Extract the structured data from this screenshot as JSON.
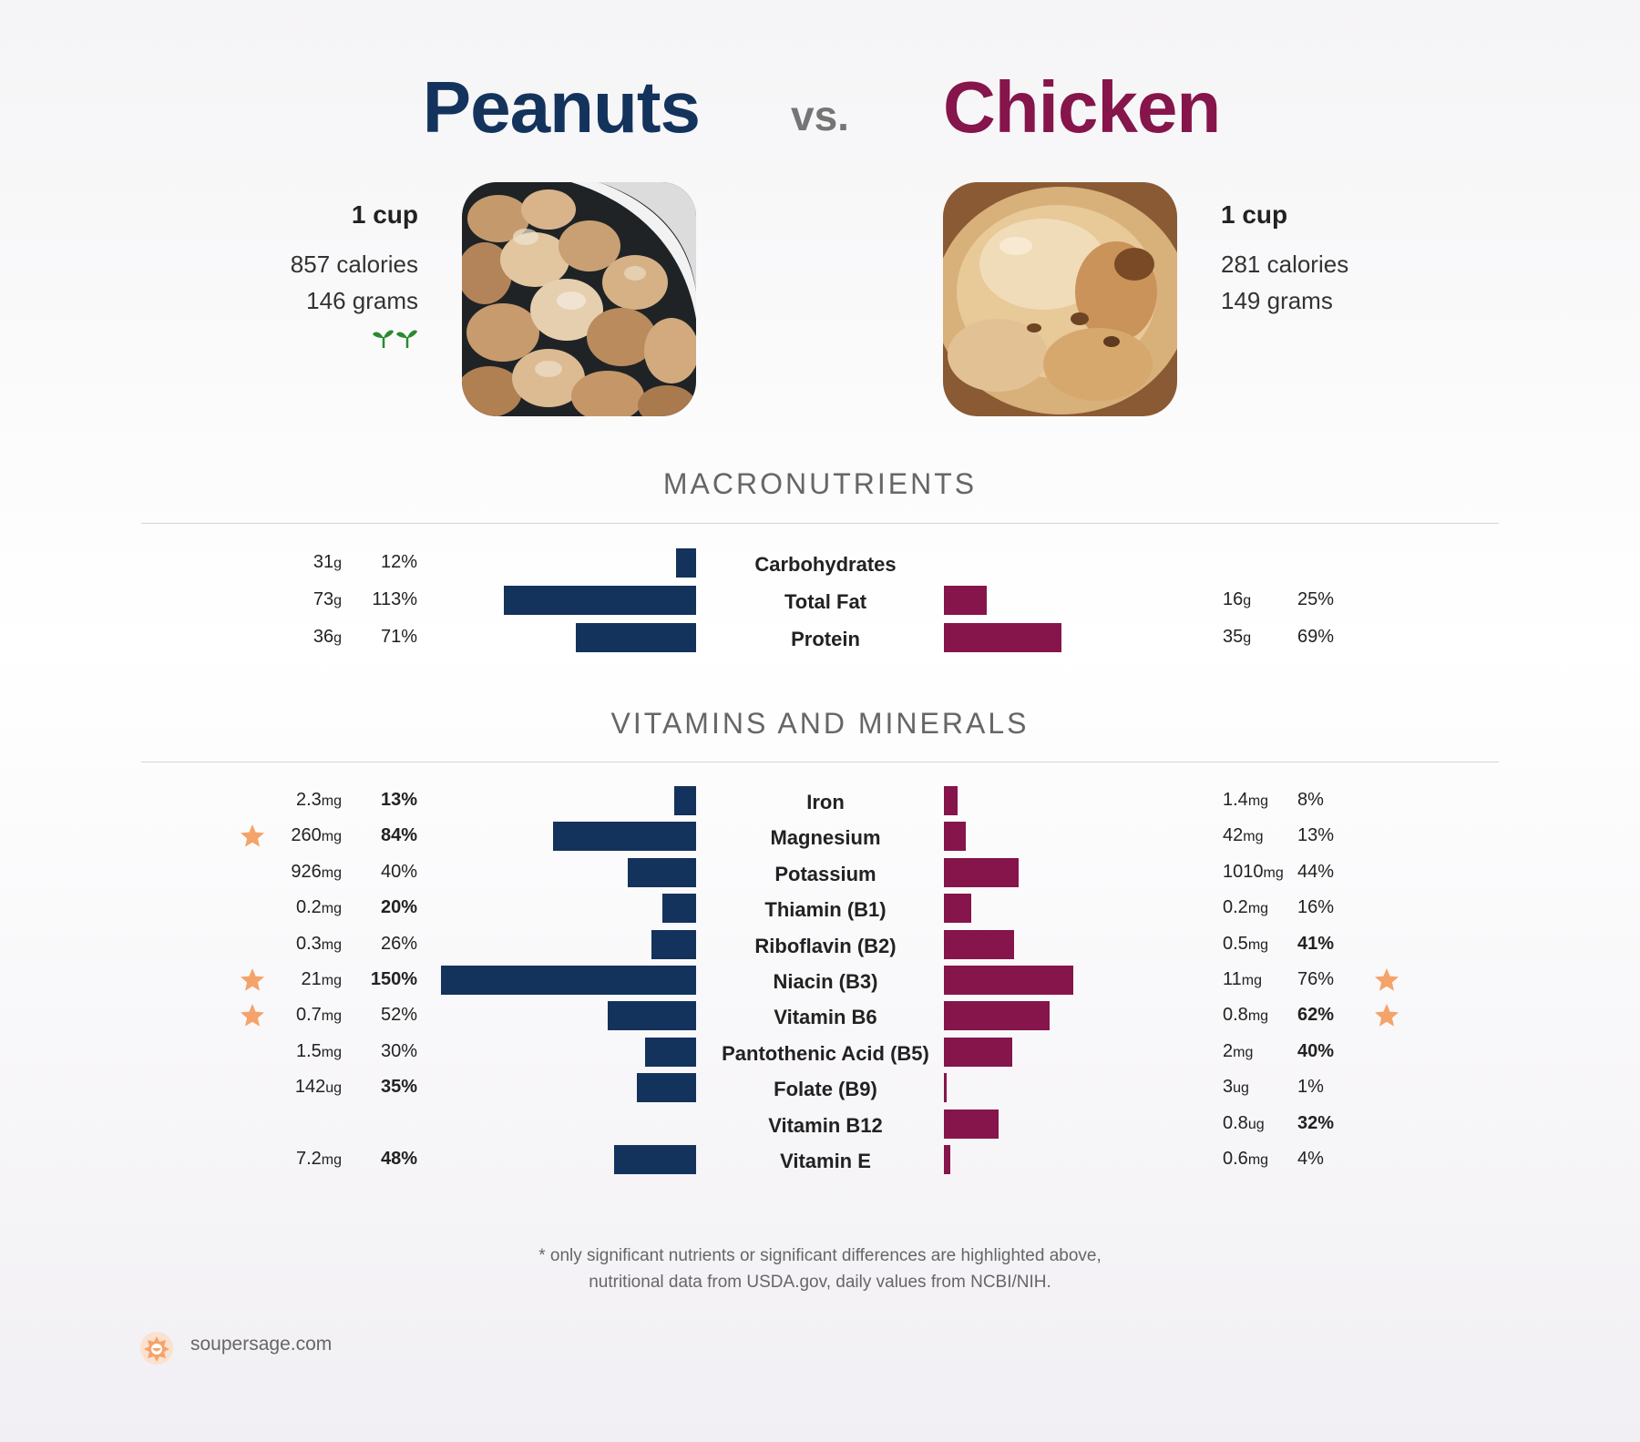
{
  "header": {
    "left_title": "Peanuts",
    "vs": "vs.",
    "right_title": "Chicken"
  },
  "left_food": {
    "serving": "1 cup",
    "calories": "857 calories",
    "grams": "146 grams",
    "badge_icon": "sprout-icon"
  },
  "right_food": {
    "serving": "1 cup",
    "calories": "281 calories",
    "grams": "149 grams"
  },
  "sections": {
    "macro": "MACRONUTRIENTS",
    "vitamins": "VITAMINS AND MINERALS"
  },
  "colors": {
    "left": "#14335c",
    "right": "#85154a",
    "star": "#f4a36b"
  },
  "chart_data": [
    {
      "type": "bar",
      "title": "MACRONUTRIENTS",
      "categories": [
        "Carbohydrates",
        "Total Fat",
        "Protein"
      ],
      "series": [
        {
          "name": "Peanuts",
          "amounts": [
            "31",
            "73",
            "36"
          ],
          "units": [
            "g",
            "g",
            "g"
          ],
          "pct_labels": [
            "12%",
            "113%",
            "71%"
          ],
          "values": [
            12,
            113,
            71
          ],
          "bold": [
            false,
            false,
            false
          ],
          "star": [
            false,
            false,
            false
          ]
        },
        {
          "name": "Chicken",
          "amounts": [
            "",
            "16",
            "35"
          ],
          "units": [
            "",
            "g",
            "g"
          ],
          "pct_labels": [
            "",
            "25%",
            "69%"
          ],
          "values": [
            0,
            25,
            69
          ],
          "bold": [
            false,
            false,
            false
          ],
          "star": [
            false,
            false,
            false
          ]
        }
      ]
    },
    {
      "type": "bar",
      "title": "VITAMINS AND MINERALS",
      "categories": [
        "Iron",
        "Magnesium",
        "Potassium",
        "Thiamin (B1)",
        "Riboflavin (B2)",
        "Niacin (B3)",
        "Vitamin B6",
        "Pantothenic Acid (B5)",
        "Folate (B9)",
        "Vitamin B12",
        "Vitamin E"
      ],
      "series": [
        {
          "name": "Peanuts",
          "amounts": [
            "2.3",
            "260",
            "926",
            "0.2",
            "0.3",
            "21",
            "0.7",
            "1.5",
            "142",
            "",
            "7.2"
          ],
          "units": [
            "mg",
            "mg",
            "mg",
            "mg",
            "mg",
            "mg",
            "mg",
            "mg",
            "ug",
            "",
            "mg"
          ],
          "pct_labels": [
            "13%",
            "84%",
            "40%",
            "20%",
            "26%",
            "150%",
            "52%",
            "30%",
            "35%",
            "",
            "48%"
          ],
          "values": [
            13,
            84,
            40,
            20,
            26,
            150,
            52,
            30,
            35,
            0,
            48
          ],
          "bold": [
            true,
            true,
            false,
            true,
            false,
            true,
            false,
            false,
            true,
            false,
            true
          ],
          "star": [
            false,
            true,
            false,
            false,
            false,
            true,
            true,
            false,
            false,
            false,
            false
          ]
        },
        {
          "name": "Chicken",
          "amounts": [
            "1.4",
            "42",
            "1010",
            "0.2",
            "0.5",
            "11",
            "0.8",
            "2",
            "3",
            "0.8",
            "0.6"
          ],
          "units": [
            "mg",
            "mg",
            "mg",
            "mg",
            "mg",
            "mg",
            "mg",
            "mg",
            "ug",
            "ug",
            "mg"
          ],
          "pct_labels": [
            "8%",
            "13%",
            "44%",
            "16%",
            "41%",
            "76%",
            "62%",
            "40%",
            "1%",
            "32%",
            "4%"
          ],
          "values": [
            8,
            13,
            44,
            16,
            41,
            76,
            62,
            40,
            1,
            32,
            4
          ],
          "bold": [
            false,
            false,
            false,
            false,
            true,
            false,
            true,
            true,
            false,
            true,
            false
          ],
          "star": [
            false,
            false,
            false,
            false,
            false,
            true,
            true,
            false,
            false,
            false,
            false
          ]
        }
      ]
    }
  ],
  "footnote": {
    "line1": "* only significant nutrients or significant differences are highlighted above,",
    "line2": "nutritional data from USDA.gov, daily values from NCBI/NIH."
  },
  "brand": {
    "text": "soupersage.com",
    "icon": "soupersage-logo-icon"
  }
}
